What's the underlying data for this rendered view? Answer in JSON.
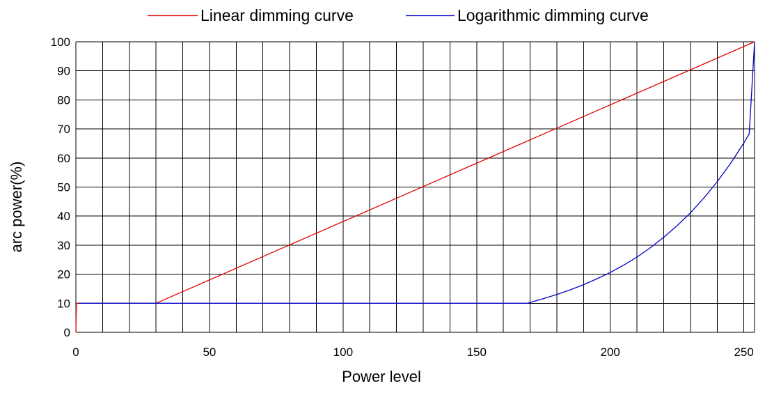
{
  "chart_data": {
    "type": "line",
    "title": "",
    "xlabel": "Power level",
    "ylabel": "arc power(%)",
    "xlim": [
      0,
      254
    ],
    "ylim": [
      0,
      100
    ],
    "x_ticks": [
      0,
      50,
      100,
      150,
      200,
      250
    ],
    "y_ticks": [
      0,
      10,
      20,
      30,
      40,
      50,
      60,
      70,
      80,
      90,
      100
    ],
    "grid": true,
    "legend_position": "top-center",
    "series": [
      {
        "name": "Linear dimming curve",
        "color": "#e00000",
        "x": [
          0,
          0.2,
          1,
          30,
          254
        ],
        "y": [
          0,
          10,
          10,
          10,
          100
        ]
      },
      {
        "name": "Logarithmic dimming curve",
        "color": "#0000c8",
        "x": [
          1,
          30,
          169,
          175,
          180,
          185,
          190,
          195,
          200,
          205,
          210,
          215,
          220,
          225,
          230,
          235,
          240,
          245,
          250,
          252,
          254
        ],
        "y": [
          10,
          10,
          10,
          11.6,
          13,
          14.6,
          16.4,
          18.4,
          20.6,
          23.1,
          25.9,
          29.1,
          32.7,
          36.7,
          41.1,
          46.2,
          51.8,
          58.1,
          65.2,
          68.3,
          100
        ]
      }
    ]
  }
}
